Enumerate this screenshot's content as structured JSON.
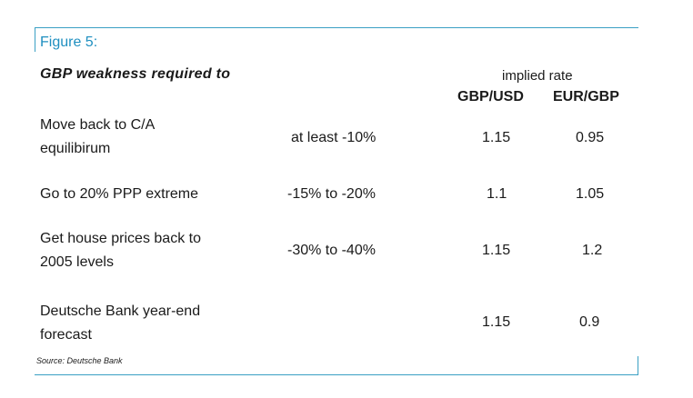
{
  "figure": {
    "label": "Figure 5:",
    "title": "GBP weakness required to",
    "implied_header": "implied rate",
    "columns": [
      "GBP/USD",
      "EUR/GBP"
    ],
    "rows": [
      {
        "scenario_line1": "Move back to C/A",
        "scenario_line2": "equilibirum",
        "weakness": "at least -10%",
        "gbpusd": "1.15",
        "eurgbp": "0.95"
      },
      {
        "scenario_line1": "Go to 20% PPP extreme",
        "scenario_line2": "",
        "weakness": "-15% to -20%",
        "gbpusd": "1.1",
        "eurgbp": "1.05"
      },
      {
        "scenario_line1": "Get house prices back to",
        "scenario_line2": "2005 levels",
        "weakness": "-30% to -40%",
        "gbpusd": "1.15",
        "eurgbp": "1.2"
      },
      {
        "scenario_line1": "Deutsche Bank year-end",
        "scenario_line2": "forecast",
        "weakness": "",
        "gbpusd": "1.15",
        "eurgbp": "0.9"
      }
    ],
    "source": "Source: Deutsche Bank",
    "accent_color": "#3aa0c4"
  }
}
